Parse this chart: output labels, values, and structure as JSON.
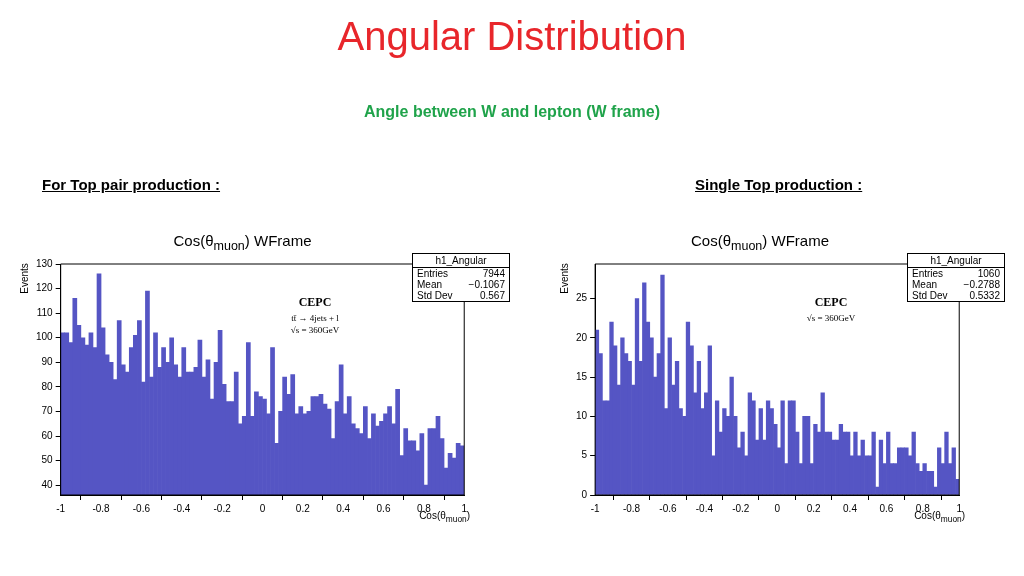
{
  "chart_data": [
    {
      "type": "other",
      "title": "Angular Distribution",
      "subtitle": "Angle between W and lepton (W frame)"
    },
    {
      "type": "histogram",
      "subtitle": "For Top pair production :",
      "title": "Cos(θ$_{muon}$) WFrame",
      "xlabel": "Cos(θ$_{muon}$)",
      "ylabel": "Events",
      "color": "#5555c4",
      "bins": [
        -1,
        -0.98,
        -0.96,
        -0.94,
        -0.92,
        -0.9,
        -0.88,
        -0.86,
        -0.84,
        -0.82,
        -0.8,
        -0.78,
        -0.76,
        -0.74,
        -0.72,
        -0.7,
        -0.68,
        -0.66,
        -0.64,
        -0.62,
        -0.6,
        -0.58,
        -0.56,
        -0.54,
        -0.52,
        -0.5,
        -0.48,
        -0.46,
        -0.44,
        -0.42,
        -0.4,
        -0.38,
        -0.36,
        -0.34,
        -0.32,
        -0.3,
        -0.28,
        -0.26,
        -0.24,
        -0.22,
        -0.2,
        -0.18,
        -0.16,
        -0.14,
        -0.12,
        -0.1,
        -0.08,
        -0.06,
        -0.04,
        -0.02,
        0,
        0.02,
        0.04,
        0.06,
        0.08,
        0.1,
        0.12,
        0.14,
        0.16,
        0.18,
        0.2,
        0.22,
        0.24,
        0.26,
        0.28,
        0.3,
        0.32,
        0.34,
        0.36,
        0.38,
        0.4,
        0.42,
        0.44,
        0.46,
        0.48,
        0.5,
        0.52,
        0.54,
        0.56,
        0.58,
        0.6,
        0.62,
        0.64,
        0.66,
        0.68,
        0.7,
        0.72,
        0.74,
        0.76,
        0.78,
        0.8,
        0.82,
        0.84,
        0.86,
        0.88,
        0.9,
        0.92,
        0.94,
        0.96,
        0.98,
        1
      ],
      "values": [
        102,
        102,
        98,
        116,
        105,
        100,
        97,
        102,
        96,
        126,
        104,
        93,
        90,
        83,
        107,
        89,
        86,
        96,
        101,
        107,
        82,
        119,
        84,
        102,
        88,
        96,
        90,
        100,
        89,
        84,
        96,
        86,
        86,
        88,
        99,
        84,
        91,
        75,
        90,
        103,
        81,
        74,
        74,
        86,
        65,
        68,
        98,
        68,
        78,
        76,
        75,
        69,
        96,
        57,
        70,
        84,
        77,
        85,
        69,
        72,
        69,
        70,
        76,
        76,
        77,
        73,
        71,
        59,
        74,
        89,
        69,
        76,
        65,
        63,
        61,
        72,
        59,
        69,
        64,
        66,
        69,
        72,
        65,
        79,
        52,
        63,
        58,
        58,
        54,
        61,
        40,
        63,
        63,
        68,
        59,
        47,
        53,
        51,
        57,
        56
      ],
      "xlim": [
        -1,
        1
      ],
      "xticks": [
        -1,
        -0.8,
        -0.6,
        -0.4,
        -0.2,
        0,
        0.2,
        0.4,
        0.6,
        0.8,
        1
      ],
      "ylim": [
        36,
        130
      ],
      "yticks": [
        40,
        50,
        60,
        70,
        80,
        90,
        100,
        110,
        120,
        130
      ],
      "annotations": [
        "h1_Angular",
        "Entries 7944",
        "Mean −0.1067",
        "Std Dev 0.567",
        "CEPC",
        "tt̄ → 4jets + l",
        "√s = 360GeV"
      ]
    },
    {
      "type": "histogram",
      "subtitle": "Single Top production :",
      "title": "Cos(θ$_{muon}$) WFrame",
      "xlabel": "Cos(θ$_{muon}$)",
      "ylabel": "Events",
      "color": "#5555c4",
      "bins": [
        -1,
        -0.98,
        -0.96,
        -0.94,
        -0.92,
        -0.9,
        -0.88,
        -0.86,
        -0.84,
        -0.82,
        -0.8,
        -0.78,
        -0.76,
        -0.74,
        -0.72,
        -0.7,
        -0.68,
        -0.66,
        -0.64,
        -0.62,
        -0.6,
        -0.58,
        -0.56,
        -0.54,
        -0.52,
        -0.5,
        -0.48,
        -0.46,
        -0.44,
        -0.42,
        -0.4,
        -0.38,
        -0.36,
        -0.34,
        -0.32,
        -0.3,
        -0.28,
        -0.26,
        -0.24,
        -0.22,
        -0.2,
        -0.18,
        -0.16,
        -0.14,
        -0.12,
        -0.1,
        -0.08,
        -0.06,
        -0.04,
        -0.02,
        0,
        0.02,
        0.04,
        0.06,
        0.08,
        0.1,
        0.12,
        0.14,
        0.16,
        0.18,
        0.2,
        0.22,
        0.24,
        0.26,
        0.28,
        0.3,
        0.32,
        0.34,
        0.36,
        0.38,
        0.4,
        0.42,
        0.44,
        0.46,
        0.48,
        0.5,
        0.52,
        0.54,
        0.56,
        0.58,
        0.6,
        0.62,
        0.64,
        0.66,
        0.68,
        0.7,
        0.72,
        0.74,
        0.76,
        0.78,
        0.8,
        0.82,
        0.84,
        0.86,
        0.88,
        0.9,
        0.92,
        0.94,
        0.96,
        0.98,
        1
      ],
      "values": [
        21,
        18,
        12,
        12,
        22,
        19,
        14,
        20,
        18,
        17,
        14,
        25,
        17,
        27,
        22,
        20,
        15,
        18,
        28,
        11,
        20,
        14,
        17,
        11,
        10,
        22,
        19,
        13,
        17,
        11,
        13,
        19,
        5,
        12,
        8,
        11,
        10,
        15,
        10,
        6,
        8,
        5,
        13,
        12,
        7,
        11,
        7,
        12,
        11,
        9,
        6,
        12,
        4,
        12,
        12,
        8,
        4,
        10,
        10,
        4,
        9,
        8,
        13,
        8,
        8,
        7,
        7,
        9,
        8,
        8,
        5,
        8,
        5,
        7,
        5,
        5,
        8,
        1,
        7,
        4,
        8,
        4,
        4,
        6,
        6,
        6,
        5,
        8,
        4,
        3,
        4,
        3,
        3,
        1,
        6,
        4,
        8,
        4,
        6,
        2
      ],
      "xlim": [
        -1,
        1
      ],
      "xticks": [
        -1,
        -0.8,
        -0.6,
        -0.4,
        -0.2,
        0,
        0.2,
        0.4,
        0.6,
        0.8,
        1
      ],
      "ylim": [
        0,
        29.4
      ],
      "yticks": [
        0,
        5,
        10,
        15,
        20,
        25
      ],
      "annotations": [
        "h1_Angular",
        "Entries 1060",
        "Mean −0.2788",
        "Std Dev 0.5332",
        "CEPC",
        "√s = 360GeV"
      ]
    }
  ]
}
